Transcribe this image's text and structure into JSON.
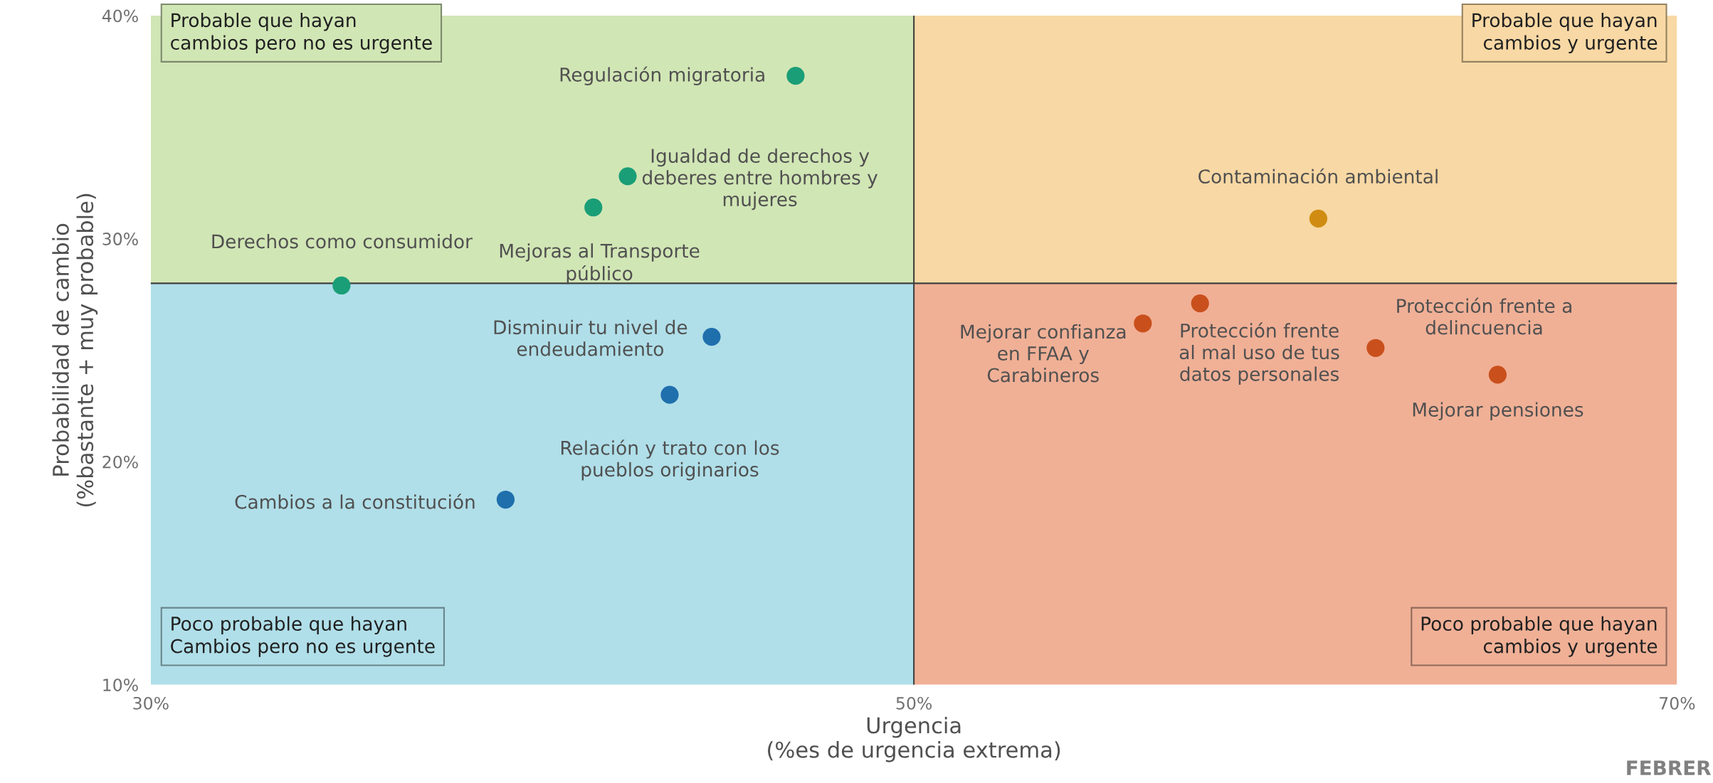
{
  "chart_data": {
    "type": "scatter",
    "xlabel": "Urgencia\n(%es de urgencia extrema)",
    "ylabel": "Probabilidad de cambio\n(%bastante + muy probable)",
    "xlim": [
      30,
      70
    ],
    "xticks": [
      {
        "value": 30,
        "label": "30%"
      },
      {
        "value": 50,
        "label": "50%"
      },
      {
        "value": 70,
        "label": "70%"
      }
    ],
    "ylim": [
      10,
      40
    ],
    "yticks": [
      {
        "value": 10,
        "label": "10%"
      },
      {
        "value": 20,
        "label": "20%"
      },
      {
        "value": 30,
        "label": "30%"
      },
      {
        "value": 40,
        "label": "40%"
      }
    ],
    "grid": false,
    "legend": false,
    "marker": "circle",
    "series": [
      {
        "x": [
          46.9,
          42.5,
          41.6,
          35.0,
          44.7,
          43.6,
          39.3,
          60.6,
          56.0,
          57.5,
          62.1,
          65.3
        ],
        "values": [
          37.3,
          32.8,
          31.4,
          27.9,
          25.6,
          23.0,
          18.3,
          30.9,
          26.2,
          27.1,
          25.1,
          23.9
        ],
        "colors": [
          "#1a9e77",
          "#1a9e77",
          "#1a9e77",
          "#1a9e77",
          "#1f6fad",
          "#1f6fad",
          "#1f6fad",
          "#d08c12",
          "#c9501c",
          "#c9501c",
          "#c9501c",
          "#c9501c"
        ],
        "value_labels": [
          "Regulación migratoria",
          "Igualdad de derechos y\ndeberes entre hombres y\nmujeres",
          "Mejoras al Transporte\npúblico",
          "Derechos como consumidor",
          "Disminuir tu nivel de\nendeudamiento",
          "Relación y trato con los\npueblos originarios",
          "Cambios a la constitución",
          "Contaminación ambiental",
          "Mejorar confianza\nen FFAA y\nCarabineros",
          "Protección frente\nal mal uso de tus\ndatos personales",
          "Protección frente a\ndelincuencia",
          "Mejorar pensiones"
        ]
      }
    ],
    "ref_lines": [
      {
        "axis": "x",
        "value": 50,
        "color": "#404040"
      },
      {
        "axis": "y",
        "value": 28,
        "color": "#404040"
      }
    ],
    "bands": [
      {
        "axis": "x",
        "from": 30,
        "to": 50,
        "color": "#d1e6b5",
        "label": "Probable que hayan\ncambios pero no es urgente"
      },
      {
        "axis": "x",
        "from": 50,
        "to": 70,
        "color": "#f8d8a4",
        "label": "Probable que hayan\ncambios y urgente"
      },
      {
        "axis": "x",
        "from": 30,
        "to": 50,
        "color": "#b0dfe9",
        "label": "Poco probable que hayan\nCambios pero no es urgente"
      },
      {
        "axis": "x",
        "from": 50,
        "to": 70,
        "color": "#f0b096",
        "label": "Poco probable que hayan\ncambios y urgente"
      }
    ],
    "annotations": [
      "FEBRER"
    ]
  }
}
